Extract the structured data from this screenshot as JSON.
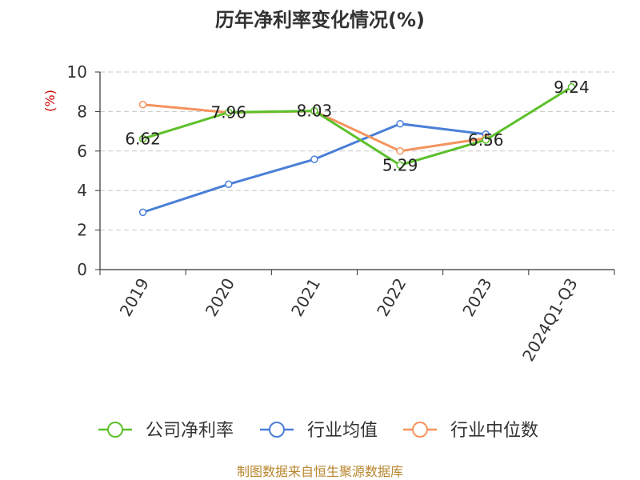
{
  "chart_data": {
    "type": "line",
    "title": "历年净利率变化情况(%)",
    "ylabel": "(%)",
    "categories": [
      "2019",
      "2020",
      "2021",
      "2022",
      "2023",
      "2024Q1-Q3"
    ],
    "ylim": [
      0,
      10
    ],
    "yticks": [
      0,
      2,
      4,
      6,
      8,
      10
    ],
    "grid": true,
    "legend_position": "bottom",
    "series": [
      {
        "name": "公司净利率",
        "color": "#5cc02a",
        "values": [
          6.62,
          7.96,
          8.03,
          5.29,
          6.56,
          9.24
        ],
        "labels": [
          "6.62",
          "7.96",
          "8.03",
          "5.29",
          "6.56",
          "9.24"
        ]
      },
      {
        "name": "行业均值",
        "color": "#4a7fd8",
        "values": [
          2.9,
          4.32,
          5.58,
          7.38,
          6.85,
          null
        ]
      },
      {
        "name": "行业中位数",
        "color": "#f4935e",
        "values": [
          8.35,
          7.95,
          8.02,
          6.0,
          6.65,
          null
        ]
      }
    ]
  },
  "footer": {
    "source": "制图数据来自恒生聚源数据库"
  }
}
